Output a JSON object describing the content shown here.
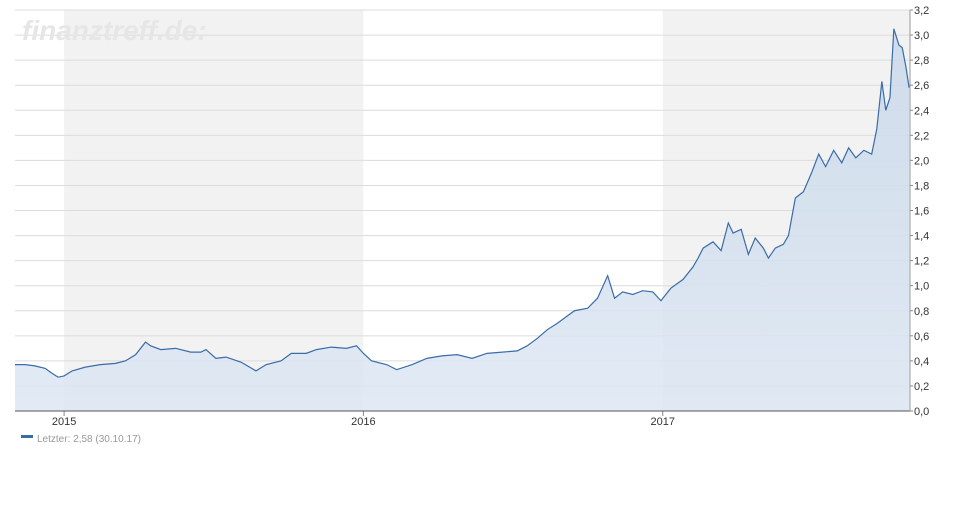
{
  "chart_data": {
    "type": "line",
    "watermark": "finanztreff.de:",
    "x": [
      2014.836,
      2014.87,
      2014.903,
      2014.937,
      2014.96,
      2014.98,
      2015.0,
      2015.027,
      2015.071,
      2015.121,
      2015.172,
      2015.205,
      2015.239,
      2015.272,
      2015.289,
      2015.323,
      2015.373,
      2015.423,
      2015.457,
      2015.474,
      2015.507,
      2015.541,
      2015.591,
      2015.641,
      2015.675,
      2015.725,
      2015.759,
      2015.809,
      2015.843,
      2015.893,
      2015.943,
      2015.977,
      2016.0,
      2016.027,
      2016.078,
      2016.111,
      2016.162,
      2016.212,
      2016.262,
      2016.313,
      2016.363,
      2016.413,
      2016.464,
      2016.514,
      2016.547,
      2016.581,
      2016.615,
      2016.648,
      2016.682,
      2016.705,
      2016.749,
      2016.782,
      2016.816,
      2016.839,
      2016.866,
      2016.9,
      2016.933,
      2016.967,
      2016.994,
      2017.027,
      2017.068,
      2017.101,
      2017.118,
      2017.135,
      2017.168,
      2017.195,
      2017.219,
      2017.235,
      2017.262,
      2017.286,
      2017.309,
      2017.336,
      2017.353,
      2017.376,
      2017.403,
      2017.42,
      2017.443,
      2017.47,
      2017.497,
      2017.521,
      2017.544,
      2017.571,
      2017.598,
      2017.621,
      2017.645,
      2017.672,
      2017.698,
      2017.715,
      2017.732,
      2017.745,
      2017.759,
      2017.772,
      2017.789,
      2017.8,
      2017.812,
      2017.823
    ],
    "series": [
      {
        "name": "Letzter: 2,58 (30.10.17)",
        "color": "#3a6ca8",
        "values": [
          0.37,
          0.37,
          0.36,
          0.34,
          0.3,
          0.27,
          0.28,
          0.32,
          0.35,
          0.37,
          0.38,
          0.4,
          0.45,
          0.55,
          0.52,
          0.49,
          0.5,
          0.47,
          0.47,
          0.49,
          0.42,
          0.43,
          0.39,
          0.32,
          0.37,
          0.4,
          0.46,
          0.46,
          0.49,
          0.51,
          0.5,
          0.52,
          0.46,
          0.4,
          0.37,
          0.33,
          0.37,
          0.42,
          0.44,
          0.45,
          0.42,
          0.46,
          0.47,
          0.48,
          0.52,
          0.58,
          0.65,
          0.7,
          0.76,
          0.8,
          0.82,
          0.9,
          1.08,
          0.9,
          0.95,
          0.93,
          0.96,
          0.95,
          0.88,
          0.98,
          1.05,
          1.15,
          1.22,
          1.3,
          1.35,
          1.28,
          1.5,
          1.42,
          1.45,
          1.25,
          1.38,
          1.3,
          1.22,
          1.3,
          1.33,
          1.4,
          1.7,
          1.75,
          1.9,
          2.05,
          1.95,
          2.08,
          1.98,
          2.1,
          2.02,
          2.08,
          2.05,
          2.25,
          2.63,
          2.4,
          2.5,
          3.05,
          2.92,
          2.9,
          2.75,
          2.58
        ]
      }
    ],
    "xlim": [
      2014.836,
      2017.826
    ],
    "xticks": [
      2015,
      2016,
      2017
    ],
    "ylim": [
      0,
      3.2
    ],
    "yticks": [
      {
        "value": 0,
        "label": "0,0"
      },
      {
        "value": 0.2,
        "label": "0,2"
      },
      {
        "value": 0.4,
        "label": "0,4"
      },
      {
        "value": 0.6,
        "label": "0,6"
      },
      {
        "value": 0.8,
        "label": "0,8"
      },
      {
        "value": 1.0,
        "label": "1,0"
      },
      {
        "value": 1.2,
        "label": "1,2"
      },
      {
        "value": 1.4,
        "label": "1,4"
      },
      {
        "value": 1.6,
        "label": "1,6"
      },
      {
        "value": 1.8,
        "label": "1,8"
      },
      {
        "value": 2.0,
        "label": "2,0"
      },
      {
        "value": 2.2,
        "label": "2,2"
      },
      {
        "value": 2.4,
        "label": "2,4"
      },
      {
        "value": 2.6,
        "label": "2,6"
      },
      {
        "value": 2.8,
        "label": "2,8"
      },
      {
        "value": 3.0,
        "label": "3,0"
      },
      {
        "value": 3.2,
        "label": "3,2"
      }
    ],
    "grid": true
  }
}
